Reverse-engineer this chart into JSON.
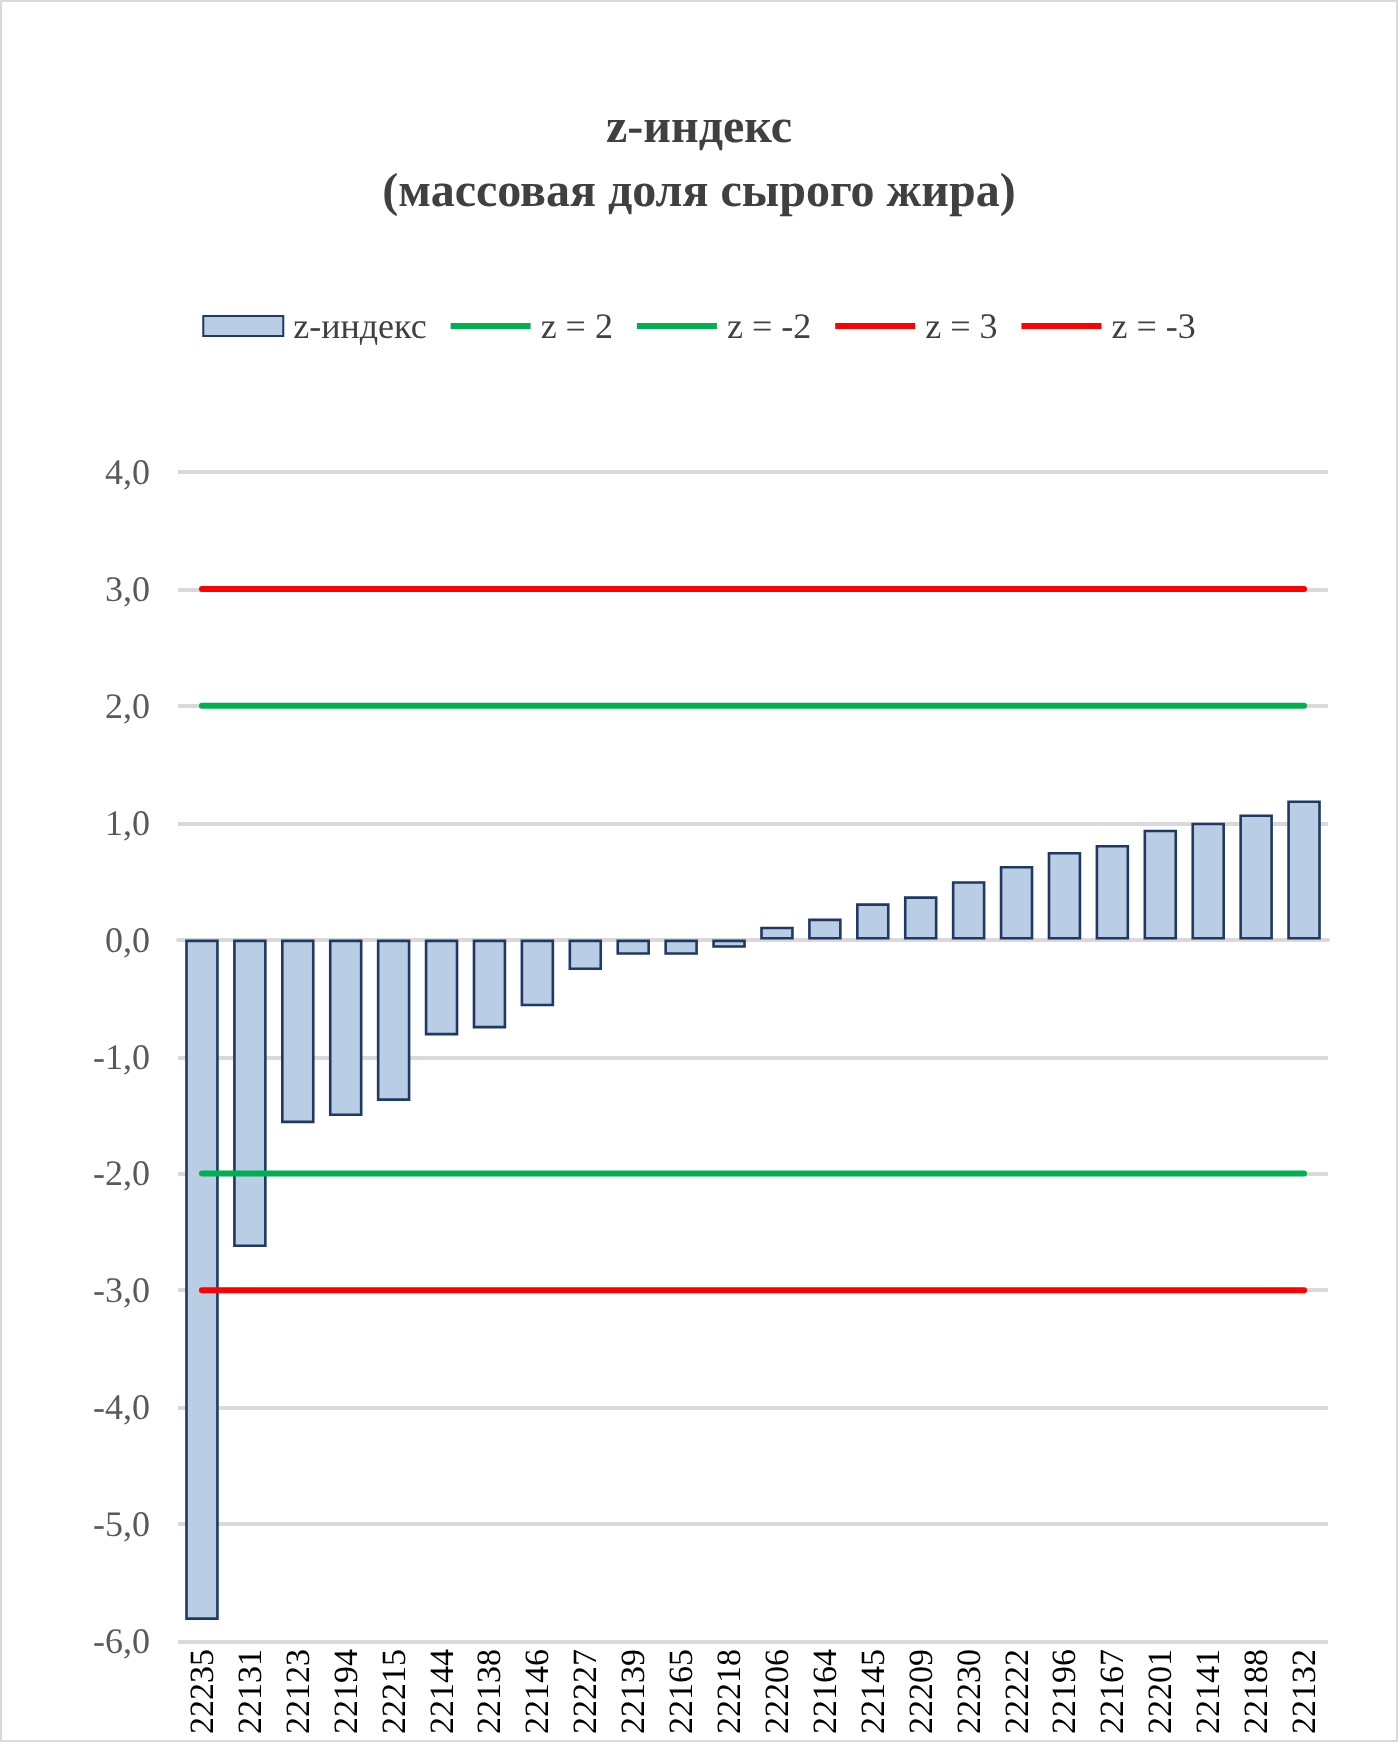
{
  "chart_data": {
    "type": "bar",
    "title": "z-индекс\n(массовая доля сырого жира)",
    "categories": [
      "22235",
      "22131",
      "22123",
      "22194",
      "22215",
      "22144",
      "22138",
      "22146",
      "22227",
      "22139",
      "22165",
      "22218",
      "22206",
      "22164",
      "22145",
      "22209",
      "22230",
      "22222",
      "22196",
      "22167",
      "22201",
      "22141",
      "22188",
      "22132"
    ],
    "series": [
      {
        "name": "z-индекс",
        "color": "#b9cde5",
        "values": [
          -5.82,
          -2.63,
          -1.57,
          -1.51,
          -1.38,
          -0.82,
          -0.76,
          -0.57,
          -0.26,
          -0.13,
          -0.13,
          -0.07,
          0.11,
          0.18,
          0.31,
          0.37,
          0.5,
          0.63,
          0.75,
          0.81,
          0.94,
          1.0,
          1.07,
          1.19
        ]
      },
      {
        "type": "line",
        "name": "z = 2",
        "color": "#00b050",
        "values": [
          2,
          2,
          2,
          2,
          2,
          2,
          2,
          2,
          2,
          2,
          2,
          2,
          2,
          2,
          2,
          2,
          2,
          2,
          2,
          2,
          2,
          2,
          2,
          2
        ]
      },
      {
        "type": "line",
        "name": "z = -2",
        "color": "#00b050",
        "values": [
          -2,
          -2,
          -2,
          -2,
          -2,
          -2,
          -2,
          -2,
          -2,
          -2,
          -2,
          -2,
          -2,
          -2,
          -2,
          -2,
          -2,
          -2,
          -2,
          -2,
          -2,
          -2,
          -2,
          -2
        ]
      },
      {
        "type": "line",
        "name": "z = 3",
        "color": "#ff0000",
        "values": [
          3,
          3,
          3,
          3,
          3,
          3,
          3,
          3,
          3,
          3,
          3,
          3,
          3,
          3,
          3,
          3,
          3,
          3,
          3,
          3,
          3,
          3,
          3,
          3
        ]
      },
      {
        "type": "line",
        "name": "z = -3",
        "color": "#ff0000",
        "values": [
          -3,
          -3,
          -3,
          -3,
          -3,
          -3,
          -3,
          -3,
          -3,
          -3,
          -3,
          -3,
          -3,
          -3,
          -3,
          -3,
          -3,
          -3,
          -3,
          -3,
          -3,
          -3,
          -3,
          -3
        ]
      }
    ],
    "ylim": [
      -6,
      4
    ],
    "yticks": [
      {
        "value": -6,
        "label": "-6,0"
      },
      {
        "value": -5,
        "label": "-5,0"
      },
      {
        "value": -4,
        "label": "-4,0"
      },
      {
        "value": -3,
        "label": "-3,0"
      },
      {
        "value": -2,
        "label": "-2,0"
      },
      {
        "value": -1,
        "label": "-1,0"
      },
      {
        "value": 0,
        "label": "0,0"
      },
      {
        "value": 1,
        "label": "1,0"
      },
      {
        "value": 2,
        "label": "2,0"
      },
      {
        "value": 3,
        "label": "3,0"
      },
      {
        "value": 4,
        "label": "4,0"
      }
    ],
    "grid": "y",
    "legend": "top",
    "marker": "none"
  }
}
